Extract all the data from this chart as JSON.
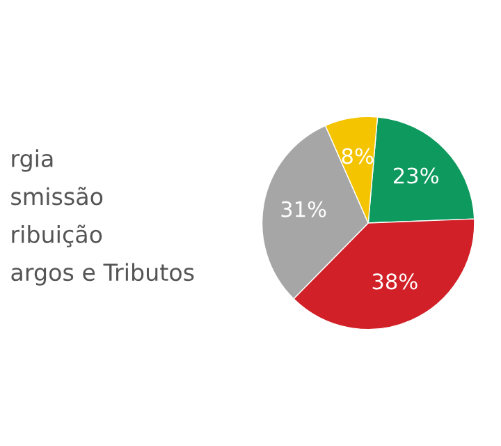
{
  "chart_data": {
    "type": "pie",
    "categories": [
      null,
      null,
      null,
      null
    ],
    "values": [
      23,
      38,
      31,
      8
    ],
    "colors": [
      "#0e9a5f",
      "#d12027",
      "#a6a6a6",
      "#f5c400"
    ],
    "value_labels": [
      "23%",
      "38%",
      "31%",
      "8%"
    ],
    "annotations": [
      "rgia",
      "smissão",
      "ribuição",
      "argos e Tributos"
    ]
  }
}
